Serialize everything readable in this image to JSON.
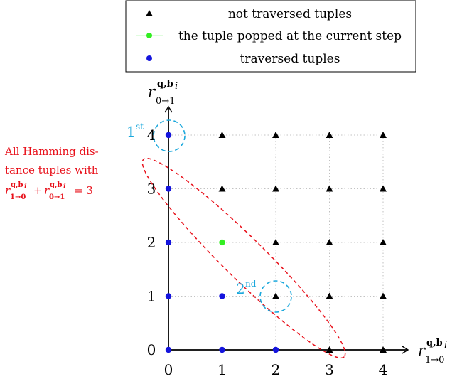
{
  "legend": {
    "entries": [
      {
        "label": "not traversed tuples",
        "marker": "triangle",
        "color": "#000000"
      },
      {
        "label": "the tuple popped at the current step",
        "marker": "circle",
        "color": "#33ee22"
      },
      {
        "label": "traversed tuples",
        "marker": "circle",
        "color": "#1414dd"
      }
    ]
  },
  "x_axis": {
    "base": "r",
    "superscript": "q,b",
    "sup_index": "i",
    "subscript": "1→0"
  },
  "y_axis": {
    "base": "r",
    "superscript": "q,b",
    "sup_index": "i",
    "subscript": "0→1"
  },
  "x_ticks": [
    "0",
    "1",
    "2",
    "3",
    "4"
  ],
  "y_ticks": [
    "0",
    "1",
    "2",
    "3",
    "4"
  ],
  "annotation": {
    "line1": "All Hamming dis-",
    "line2": "tance tuples with",
    "term_base": "r",
    "term1_sub": "1→0",
    "term2_sub": "0→1",
    "term_sup": "q,b",
    "term_sup_index": "i",
    "plus": "+",
    "equals": "= 3"
  },
  "steps": [
    {
      "label": "1",
      "suffix": "st"
    },
    {
      "label": "2",
      "suffix": "nd"
    }
  ],
  "colors": {
    "not_traversed": "#000000",
    "popped": "#33ee22",
    "traversed": "#1414dd",
    "ellipse": "#e8101a",
    "step_circle": "#1ba8dc",
    "grid": "#b0b0b0"
  },
  "chart_data": {
    "type": "scatter",
    "xlim": [
      0,
      4
    ],
    "ylim": [
      0,
      4
    ],
    "grid": true,
    "legend_position": "top",
    "series": [
      {
        "name": "not traversed tuples",
        "marker": "triangle",
        "points": [
          [
            1,
            4
          ],
          [
            2,
            4
          ],
          [
            3,
            4
          ],
          [
            4,
            4
          ],
          [
            1,
            3
          ],
          [
            2,
            3
          ],
          [
            3,
            3
          ],
          [
            4,
            3
          ],
          [
            2,
            2
          ],
          [
            3,
            2
          ],
          [
            4,
            2
          ],
          [
            2,
            1
          ],
          [
            3,
            1
          ],
          [
            4,
            1
          ],
          [
            3,
            0
          ],
          [
            4,
            0
          ]
        ]
      },
      {
        "name": "the tuple popped at the current step",
        "marker": "circle",
        "points": [
          [
            1,
            2
          ]
        ]
      },
      {
        "name": "traversed tuples",
        "marker": "circle",
        "points": [
          [
            0,
            0
          ],
          [
            1,
            0
          ],
          [
            2,
            0
          ],
          [
            0,
            1
          ],
          [
            1,
            1
          ],
          [
            0,
            2
          ],
          [
            0,
            3
          ],
          [
            0,
            4
          ]
        ]
      }
    ]
  }
}
